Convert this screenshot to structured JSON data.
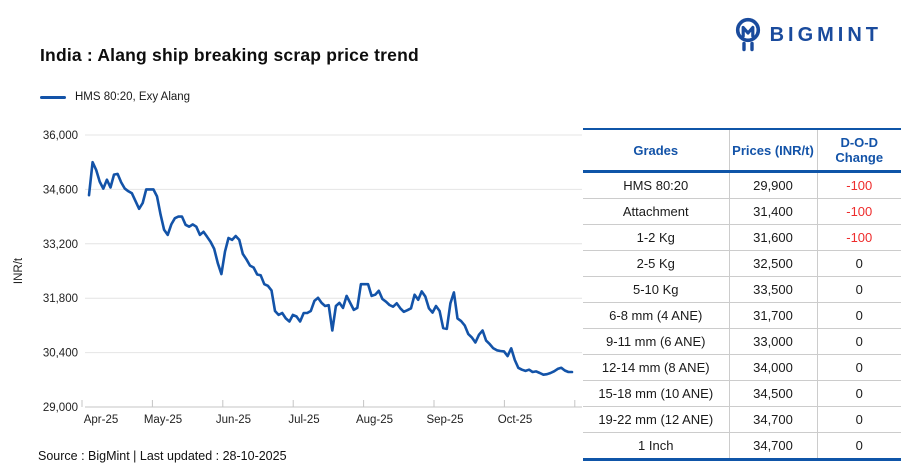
{
  "logo": {
    "brand": "BIGMINT"
  },
  "title": "India : Alang ship breaking scrap price trend",
  "legend": {
    "label": "HMS 80:20, Exy Alang"
  },
  "footer": {
    "text": "Source : BigMint | Last updated : 28-10-2025"
  },
  "colors": {
    "line": "#1353A8",
    "table_border": "#0F55A8",
    "header_text": "#1353A8",
    "negative": "#EE2C2C",
    "brand": "#1A4B9D",
    "gridline": "#e4e4e4",
    "axis": "#c4c4c4"
  },
  "chart_data": {
    "type": "line",
    "title": "India : Alang ship breaking scrap price trend",
    "ylabel": "INR/t",
    "xlabel": "",
    "ylim": [
      29000,
      36000
    ],
    "grid": true,
    "legend_position": "top-left",
    "x_tick_labels": [
      "Apr-25",
      "May-25",
      "Jun-25",
      "Jul-25",
      "Aug-25",
      "Sep-25",
      "Oct-25"
    ],
    "y_ticks": [
      29000,
      30400,
      31800,
      33200,
      34600,
      36000
    ],
    "y_tick_labels": [
      "29,000",
      "30,400",
      "31,800",
      "33,200",
      "34,600",
      "36,000"
    ],
    "series": [
      {
        "name": "HMS 80:20, Exy Alang",
        "values": [
          34450,
          35300,
          35100,
          34800,
          34620,
          34850,
          34650,
          34980,
          35000,
          34780,
          34620,
          34550,
          34500,
          34300,
          34100,
          34250,
          34600,
          34600,
          34600,
          34420,
          33950,
          33560,
          33430,
          33700,
          33860,
          33900,
          33900,
          33690,
          33640,
          33700,
          33640,
          33430,
          33510,
          33380,
          33250,
          33070,
          32700,
          32420,
          33000,
          33350,
          33300,
          33400,
          33300,
          32940,
          32800,
          32640,
          32590,
          32410,
          32390,
          32160,
          32120,
          32000,
          31470,
          31370,
          31420,
          31280,
          31200,
          31370,
          31330,
          31200,
          31420,
          31420,
          31470,
          31730,
          31810,
          31680,
          31600,
          31620,
          30970,
          31600,
          31680,
          31550,
          31860,
          31680,
          31500,
          31550,
          32160,
          32160,
          32160,
          31860,
          31890,
          31990,
          31780,
          31710,
          31625,
          31580,
          31670,
          31540,
          31450,
          31490,
          31540,
          31890,
          31760,
          31975,
          31845,
          31540,
          31430,
          31600,
          31470,
          31030,
          31010,
          31670,
          31950,
          31280,
          31210,
          31100,
          30880,
          30790,
          30660,
          30860,
          30970,
          30710,
          30620,
          30510,
          30460,
          30440,
          30430,
          30310,
          30510,
          30210,
          30010,
          29960,
          29930,
          29960,
          29900,
          29915,
          29875,
          29830,
          29845,
          29875,
          29920,
          29980,
          30010,
          29940,
          29900,
          29900
        ]
      }
    ]
  },
  "table": {
    "headers": [
      "Grades",
      "Prices (INR/t)",
      "D-O-D Change"
    ],
    "rows": [
      {
        "grade": "HMS 80:20",
        "price": "29,900",
        "change": "-100"
      },
      {
        "grade": "Attachment",
        "price": "31,400",
        "change": "-100"
      },
      {
        "grade": "1-2 Kg",
        "price": "31,600",
        "change": "-100"
      },
      {
        "grade": "2-5 Kg",
        "price": "32,500",
        "change": "0"
      },
      {
        "grade": "5-10 Kg",
        "price": "33,500",
        "change": "0"
      },
      {
        "grade": "6-8 mm (4 ANE)",
        "price": "31,700",
        "change": "0"
      },
      {
        "grade": "9-11 mm (6 ANE)",
        "price": "33,000",
        "change": "0"
      },
      {
        "grade": "12-14 mm (8 ANE)",
        "price": "34,000",
        "change": "0"
      },
      {
        "grade": "15-18 mm (10 ANE)",
        "price": "34,500",
        "change": "0"
      },
      {
        "grade": "19-22 mm (12 ANE)",
        "price": "34,700",
        "change": "0"
      },
      {
        "grade": "1 Inch",
        "price": "34,700",
        "change": "0"
      }
    ]
  }
}
